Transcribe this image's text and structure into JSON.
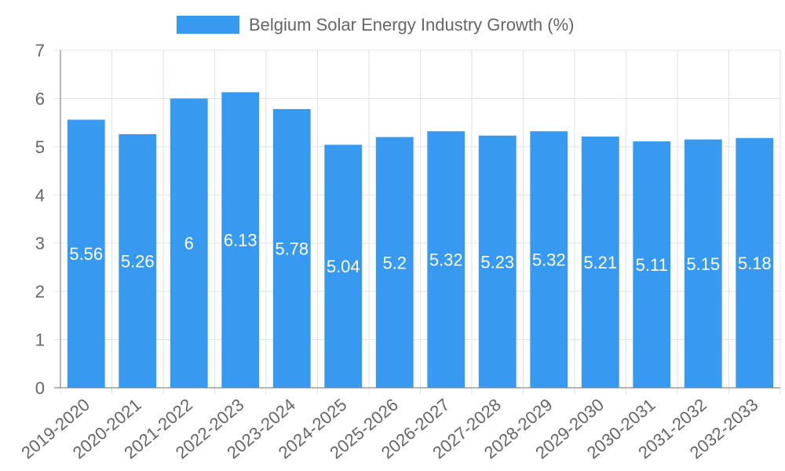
{
  "chart_data": {
    "type": "bar",
    "title": "",
    "xlabel": "",
    "ylabel": "",
    "ylim": [
      0,
      7
    ],
    "yticks": [
      "0",
      "1",
      "2",
      "3",
      "4",
      "5",
      "6",
      "7"
    ],
    "grid": true,
    "legend_position": "top-center",
    "categories": [
      "2019-2020",
      "2020-2021",
      "2021-2022",
      "2022-2023",
      "2023-2024",
      "2024-2025",
      "2025-2026",
      "2026-2027",
      "2027-2028",
      "2028-2029",
      "2029-2030",
      "2030-2031",
      "2031-2032",
      "2032-2033"
    ],
    "series": [
      {
        "name": "Belgium Solar Energy Industry Growth (%)",
        "values": [
          5.56,
          5.26,
          6,
          6.13,
          5.78,
          5.04,
          5.2,
          5.32,
          5.23,
          5.32,
          5.21,
          5.11,
          5.15,
          5.18
        ],
        "labels": [
          "5.56",
          "5.26",
          "6",
          "6.13",
          "5.78",
          "5.04",
          "5.2",
          "5.32",
          "5.23",
          "5.32",
          "5.21",
          "5.11",
          "5.15",
          "5.18"
        ],
        "color": "#3799F0"
      }
    ]
  },
  "colors": {
    "grid": "#E1E1E1",
    "axis": "#9E9E9E",
    "text": "#666666",
    "bar": "#3799F0",
    "data_label": "#FFFFFF"
  }
}
